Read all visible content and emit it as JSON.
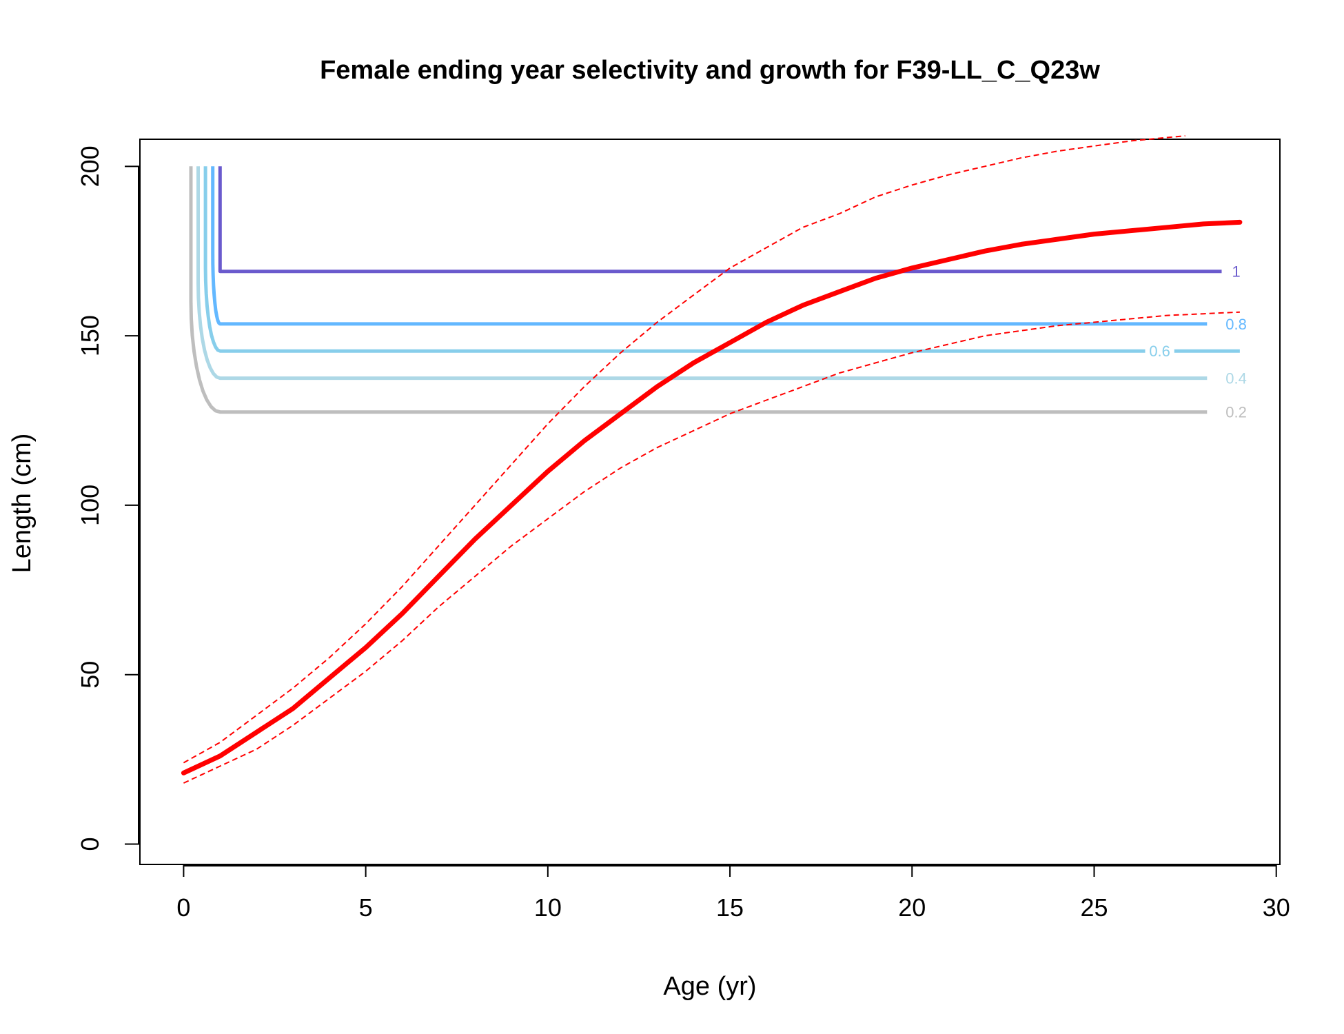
{
  "chart_data": {
    "type": "line",
    "title": "Female ending year selectivity and growth for F39-LL_C_Q23w",
    "xlabel": "Age (yr)",
    "ylabel": "Length (cm)",
    "xlim": [
      -1.2,
      30.1
    ],
    "ylim": [
      -6,
      208
    ],
    "x_ticks": [
      0,
      5,
      10,
      15,
      20,
      25,
      30
    ],
    "y_ticks": [
      0,
      50,
      100,
      150,
      200
    ],
    "grid": false,
    "legend": "none",
    "growth": {
      "color": "#ff0000",
      "mean": {
        "x": [
          0,
          1,
          2,
          3,
          4,
          5,
          6,
          7,
          8,
          9,
          10,
          11,
          12,
          13,
          14,
          15,
          16,
          17,
          18,
          19,
          20,
          21,
          22,
          23,
          24,
          25,
          26,
          27,
          28,
          29
        ],
        "y": [
          21,
          26,
          33,
          40,
          49,
          58,
          68,
          79,
          90,
          100,
          110,
          119,
          127,
          135,
          142,
          148,
          154,
          159,
          163,
          167,
          170,
          172.5,
          175,
          177,
          178.5,
          180,
          181,
          182,
          183,
          183.5
        ]
      },
      "upper": {
        "x": [
          0,
          1,
          2,
          3,
          4,
          5,
          6,
          7,
          8,
          9,
          10,
          11,
          12,
          13,
          14,
          15,
          16,
          17,
          18,
          19,
          20,
          21,
          22,
          23,
          24,
          25,
          26,
          27,
          27.5
        ],
        "y": [
          24,
          30,
          38,
          46,
          55,
          65,
          76,
          88,
          100,
          112,
          124,
          135,
          145,
          154,
          162,
          170,
          176,
          182,
          186,
          191,
          194.5,
          197.5,
          200,
          202.5,
          204.5,
          206,
          207.5,
          208.5,
          209
        ]
      },
      "lower": {
        "x": [
          0,
          1,
          2,
          3,
          4,
          5,
          6,
          7,
          8,
          9,
          10,
          11,
          12,
          13,
          14,
          15,
          16,
          17,
          18,
          19,
          20,
          21,
          22,
          23,
          24,
          25,
          26,
          27,
          28,
          29
        ],
        "y": [
          18,
          23,
          28,
          35,
          43,
          51,
          60,
          70,
          79,
          88,
          96,
          104,
          111,
          117,
          122,
          127,
          131,
          135,
          139,
          142,
          145,
          147.5,
          150,
          151.5,
          153,
          154,
          155,
          156,
          156.5,
          157
        ]
      }
    },
    "selectivity_contours": [
      {
        "label": "1",
        "color": "#6a5acd",
        "x_start": 1.0,
        "length": 169,
        "x_end": 28.5,
        "label_x": 28.9
      },
      {
        "label": "0.8",
        "color": "#63b8ff",
        "x_start": 0.8,
        "length": 153.5,
        "x_end": 28.1,
        "label_x": 28.9
      },
      {
        "label": "0.6",
        "color": "#87ceeb",
        "x_start": 0.6,
        "length": 145.5,
        "x_end": 29.0,
        "label_x": 26.8,
        "gap": [
          26.4,
          27.2
        ]
      },
      {
        "label": "0.4",
        "color": "#add8e6",
        "x_start": 0.4,
        "length": 137.5,
        "x_end": 28.1,
        "label_x": 28.9
      },
      {
        "label": "0.2",
        "color": "#bebebe",
        "x_start": 0.2,
        "length": 127.5,
        "x_end": 28.1,
        "label_x": 28.9
      }
    ]
  }
}
